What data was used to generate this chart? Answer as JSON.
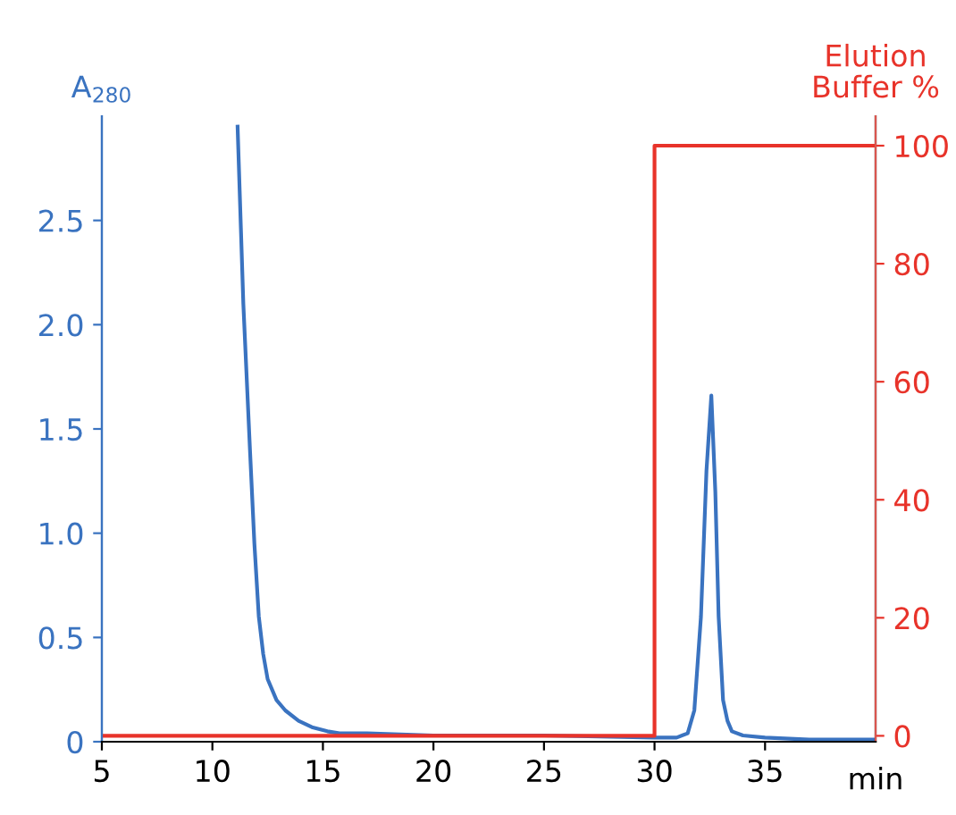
{
  "chart_data": {
    "type": "line",
    "xlabel": "min",
    "ylabel": "A$_{280}$",
    "y2label": "Elution\nBuffer %",
    "xlim": [
      5,
      40
    ],
    "xticks": [
      5,
      10,
      15,
      20,
      25,
      30,
      35
    ],
    "ylim": [
      0,
      3.0
    ],
    "yticks": [
      0,
      0.5,
      {
        "value": 1,
        "label": "1.0"
      },
      1.5,
      {
        "value": 2,
        "label": "2.0"
      },
      2.5
    ],
    "y2lim": [
      -1,
      105
    ],
    "y2ticks": [
      0,
      20,
      40,
      60,
      80,
      100
    ],
    "grid": false,
    "legend": false,
    "series": [
      {
        "color": "#3a73c0",
        "x": [
          11.14,
          11.4,
          11.7,
          11.9,
          12.1,
          12.3,
          12.5,
          12.9,
          13.3,
          13.9,
          14.5,
          15.2,
          15.75,
          17,
          20,
          25,
          30,
          31,
          31.5,
          31.8,
          32.1,
          32.35,
          32.57,
          32.75,
          32.9,
          33.1,
          33.3,
          33.5,
          34,
          35,
          37,
          40
        ],
        "values": [
          2.95,
          2.1,
          1.4,
          0.95,
          0.6,
          0.42,
          0.3,
          0.2,
          0.15,
          0.1,
          0.07,
          0.05,
          0.04,
          0.04,
          0.03,
          0.03,
          0.02,
          0.02,
          0.04,
          0.15,
          0.6,
          1.3,
          1.66,
          1.2,
          0.6,
          0.2,
          0.1,
          0.05,
          0.03,
          0.02,
          0.01,
          0.01
        ]
      },
      {
        "color": "#e8332a",
        "axis": "y2",
        "x": [
          5,
          30,
          30,
          40
        ],
        "values": [
          0,
          0,
          100,
          100
        ]
      }
    ]
  }
}
